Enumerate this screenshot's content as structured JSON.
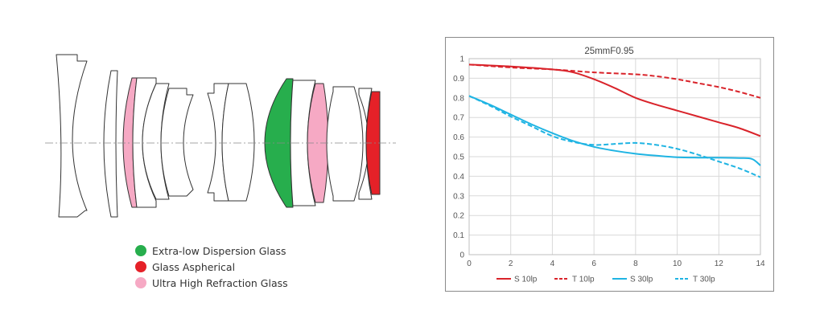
{
  "legend": {
    "items": [
      {
        "label": "Extra-low Dispersion Glass",
        "color": "#27ae4d"
      },
      {
        "label": "Glass Aspherical",
        "color": "#e52128"
      },
      {
        "label": "Ultra High Refraction Glass",
        "color": "#f6a9c4"
      }
    ]
  },
  "chart_data": {
    "type": "line",
    "title": "25mmF0.95",
    "xlabel": "",
    "ylabel": "",
    "xlim": [
      0,
      14
    ],
    "ylim": [
      0,
      1
    ],
    "x_ticks": [
      "0",
      "2",
      "4",
      "6",
      "8",
      "10",
      "12",
      "14"
    ],
    "y_ticks": [
      "0",
      "0.1",
      "0.2",
      "0.3",
      "0.4",
      "0.5",
      "0.6",
      "0.7",
      "0.8",
      "0.9",
      "1"
    ],
    "grid": true,
    "legend_position": "bottom",
    "series": [
      {
        "name": "S 10lp",
        "color": "#d9232a",
        "dash": false,
        "x": [
          0,
          2,
          4,
          5,
          6,
          7,
          8,
          9,
          10,
          11,
          12,
          13,
          14
        ],
        "y": [
          0.97,
          0.96,
          0.945,
          0.93,
          0.895,
          0.85,
          0.8,
          0.765,
          0.735,
          0.705,
          0.675,
          0.645,
          0.605
        ]
      },
      {
        "name": "T 10lp",
        "color": "#d9232a",
        "dash": true,
        "x": [
          0,
          2,
          4,
          6,
          8,
          9,
          10,
          11,
          12,
          13,
          14
        ],
        "y": [
          0.97,
          0.955,
          0.945,
          0.93,
          0.92,
          0.91,
          0.895,
          0.875,
          0.855,
          0.83,
          0.8
        ]
      },
      {
        "name": "S 30lp",
        "color": "#1fb4e3",
        "dash": false,
        "x": [
          0,
          1,
          2,
          3,
          4,
          5,
          6,
          7,
          8,
          9,
          10,
          11,
          12,
          13,
          13.6,
          14
        ],
        "y": [
          0.81,
          0.765,
          0.715,
          0.665,
          0.62,
          0.58,
          0.55,
          0.53,
          0.515,
          0.505,
          0.497,
          0.495,
          0.495,
          0.493,
          0.488,
          0.455
        ]
      },
      {
        "name": "T 30lp",
        "color": "#1fb4e3",
        "dash": true,
        "x": [
          0,
          1,
          2,
          3,
          4,
          5,
          6,
          7,
          8,
          9,
          10,
          11,
          12,
          13,
          14
        ],
        "y": [
          0.81,
          0.76,
          0.705,
          0.655,
          0.605,
          0.575,
          0.56,
          0.565,
          0.57,
          0.56,
          0.54,
          0.51,
          0.475,
          0.44,
          0.395
        ]
      }
    ]
  }
}
